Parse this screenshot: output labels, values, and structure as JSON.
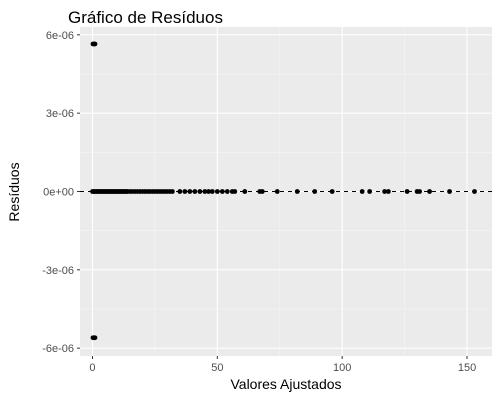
{
  "colors": {
    "panel_background": "#ebebeb",
    "grid_major": "#ffffff",
    "grid_minor": "#f5f5f5",
    "points": "#000000",
    "reference_line": "#000000",
    "tick_text": "#4d4d4d"
  },
  "chart_data": {
    "type": "scatter",
    "title": "Gráfico de Resíduos",
    "xlabel": "Valores Ajustados",
    "ylabel": "Resíduos",
    "xlim": [
      -5,
      160
    ],
    "ylim": [
      -6.3e-06,
      6.3e-06
    ],
    "x_ticks": [
      0,
      50,
      100,
      150
    ],
    "x_tick_labels": [
      "0",
      "50",
      "100",
      "150"
    ],
    "y_ticks": [
      -6e-06,
      -3e-06,
      0,
      3e-06,
      6e-06
    ],
    "y_tick_labels": [
      "-6e-06",
      "-3e-06",
      "0e+00",
      "3e-06",
      "6e-06"
    ],
    "grid": true,
    "reference_line": {
      "y": 0,
      "style": "dashed"
    },
    "series": [
      {
        "points": [
          {
            "x": 0.2,
            "y": 5.65e-06
          },
          {
            "x": 0.6,
            "y": 5.65e-06
          },
          {
            "x": 1.0,
            "y": 5.65e-06
          },
          {
            "x": 0.2,
            "y": -5.6e-06
          },
          {
            "x": 0.6,
            "y": -5.6e-06
          },
          {
            "x": 1.0,
            "y": -5.6e-06
          },
          {
            "x": 0.0,
            "y": 0
          },
          {
            "x": 0.5,
            "y": 0
          },
          {
            "x": 1.0,
            "y": 0
          },
          {
            "x": 1.5,
            "y": 0
          },
          {
            "x": 2.0,
            "y": 0
          },
          {
            "x": 2.5,
            "y": 0
          },
          {
            "x": 3.0,
            "y": 0
          },
          {
            "x": 3.5,
            "y": 0
          },
          {
            "x": 4.0,
            "y": 0
          },
          {
            "x": 4.5,
            "y": 0
          },
          {
            "x": 5.0,
            "y": 0
          },
          {
            "x": 5.5,
            "y": 0
          },
          {
            "x": 6.0,
            "y": 0
          },
          {
            "x": 6.5,
            "y": 0
          },
          {
            "x": 7.0,
            "y": 0
          },
          {
            "x": 7.5,
            "y": 0
          },
          {
            "x": 8.0,
            "y": 0
          },
          {
            "x": 8.5,
            "y": 0
          },
          {
            "x": 9.0,
            "y": 0
          },
          {
            "x": 9.5,
            "y": 0
          },
          {
            "x": 10.0,
            "y": 0
          },
          {
            "x": 10.5,
            "y": 0
          },
          {
            "x": 11.0,
            "y": 0
          },
          {
            "x": 11.5,
            "y": 0
          },
          {
            "x": 12.0,
            "y": 0
          },
          {
            "x": 12.5,
            "y": 0
          },
          {
            "x": 13.0,
            "y": 0
          },
          {
            "x": 13.5,
            "y": 0
          },
          {
            "x": 14.0,
            "y": 0
          },
          {
            "x": 15.0,
            "y": 0
          },
          {
            "x": 16.0,
            "y": 0
          },
          {
            "x": 17.0,
            "y": 0
          },
          {
            "x": 18.0,
            "y": 0
          },
          {
            "x": 19.0,
            "y": 0
          },
          {
            "x": 20.0,
            "y": 0
          },
          {
            "x": 21.0,
            "y": 0
          },
          {
            "x": 22.0,
            "y": 0
          },
          {
            "x": 23.0,
            "y": 0
          },
          {
            "x": 24.0,
            "y": 0
          },
          {
            "x": 25.0,
            "y": 0
          },
          {
            "x": 26.0,
            "y": 0
          },
          {
            "x": 27.0,
            "y": 0
          },
          {
            "x": 28.0,
            "y": 0
          },
          {
            "x": 29.0,
            "y": 0
          },
          {
            "x": 30.0,
            "y": 0
          },
          {
            "x": 31.0,
            "y": 0
          },
          {
            "x": 32.0,
            "y": 0
          },
          {
            "x": 35.0,
            "y": 0
          },
          {
            "x": 37.0,
            "y": 0
          },
          {
            "x": 39.0,
            "y": 0
          },
          {
            "x": 41.0,
            "y": 0
          },
          {
            "x": 43.0,
            "y": 0
          },
          {
            "x": 45.0,
            "y": 0
          },
          {
            "x": 46.5,
            "y": 0
          },
          {
            "x": 48.0,
            "y": 0
          },
          {
            "x": 50.0,
            "y": 0
          },
          {
            "x": 52.0,
            "y": 0
          },
          {
            "x": 54.0,
            "y": 0
          },
          {
            "x": 56.0,
            "y": 0
          },
          {
            "x": 57.0,
            "y": 0
          },
          {
            "x": 61.0,
            "y": 0
          },
          {
            "x": 67.0,
            "y": 0
          },
          {
            "x": 68.0,
            "y": 0
          },
          {
            "x": 74.0,
            "y": 0
          },
          {
            "x": 82.0,
            "y": 0
          },
          {
            "x": 89.0,
            "y": 0
          },
          {
            "x": 96.0,
            "y": 0
          },
          {
            "x": 108.0,
            "y": 0
          },
          {
            "x": 111.0,
            "y": 0
          },
          {
            "x": 117.0,
            "y": 0
          },
          {
            "x": 118.5,
            "y": 0
          },
          {
            "x": 126.0,
            "y": 0
          },
          {
            "x": 130.0,
            "y": 0
          },
          {
            "x": 131.0,
            "y": 0
          },
          {
            "x": 135.0,
            "y": 0
          },
          {
            "x": 143.0,
            "y": 0
          },
          {
            "x": 153.0,
            "y": 0
          }
        ]
      }
    ]
  }
}
